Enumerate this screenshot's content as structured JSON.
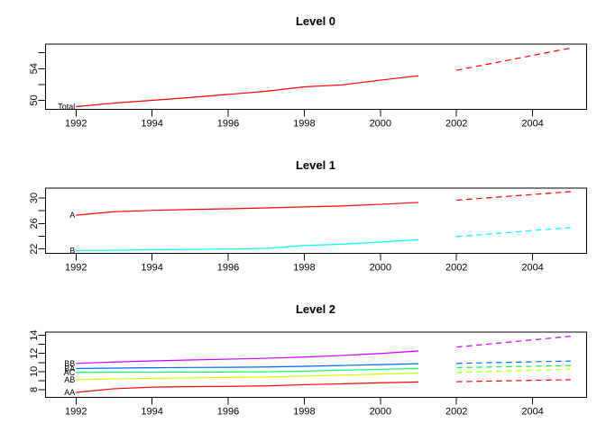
{
  "figure": {
    "background": "#ffffff",
    "axis_color": "#000000",
    "text_color": "#000000"
  },
  "chart_data": [
    {
      "type": "line",
      "title": "Level 0",
      "xlim": [
        1991.2,
        2005.42
      ],
      "ylim": [
        48.86,
        57.1
      ],
      "x_ticks": [
        1992,
        1994,
        1996,
        1998,
        2000,
        2002,
        2004
      ],
      "x_tick_labels": [
        "1992",
        "1994",
        "1996",
        "1998",
        "2000",
        "2002",
        "2004"
      ],
      "y_ticks": [
        50,
        52,
        54,
        56
      ],
      "y_tick_labels": [
        "50",
        "",
        "54",
        ""
      ],
      "grid": false,
      "legend_position": "line-start-labels",
      "years_solid": [
        1992,
        1993,
        1994,
        1995,
        1996,
        1997,
        1998,
        1999,
        2000,
        2001
      ],
      "years_forecast": [
        2002,
        2003,
        2004,
        2005
      ],
      "series": [
        {
          "name": "Total",
          "color": "#FF0000",
          "solid": [
            49.2,
            49.65,
            50.0,
            50.35,
            50.75,
            51.15,
            51.7,
            51.95,
            52.55,
            53.1
          ],
          "forecast": [
            53.8,
            54.73,
            55.67,
            56.6
          ]
        }
      ]
    },
    {
      "type": "line",
      "title": "Level 1",
      "xlim": [
        1991.2,
        2005.42
      ],
      "ylim": [
        21.32,
        31.55
      ],
      "x_ticks": [
        1992,
        1994,
        1996,
        1998,
        2000,
        2002,
        2004
      ],
      "x_tick_labels": [
        "1992",
        "1994",
        "1996",
        "1998",
        "2000",
        "2002",
        "2004"
      ],
      "y_ticks": [
        22,
        24,
        26,
        28,
        30
      ],
      "y_tick_labels": [
        "22",
        "",
        "26",
        "",
        "30"
      ],
      "grid": false,
      "legend_position": "line-start-labels",
      "years_solid": [
        1992,
        1993,
        1994,
        1995,
        1996,
        1997,
        1998,
        1999,
        2000,
        2001
      ],
      "years_forecast": [
        2002,
        2003,
        2004,
        2005
      ],
      "series": [
        {
          "name": "B",
          "color": "#00FFFF",
          "solid": [
            21.75,
            21.8,
            21.88,
            21.93,
            22.0,
            22.1,
            22.55,
            22.75,
            23.1,
            23.45
          ],
          "forecast": [
            23.95,
            24.4,
            24.9,
            25.35
          ]
        },
        {
          "name": "A",
          "color": "#FF0000",
          "solid": [
            27.3,
            27.85,
            28.05,
            28.2,
            28.3,
            28.45,
            28.6,
            28.75,
            29.0,
            29.3
          ],
          "forecast": [
            29.65,
            30.1,
            30.55,
            31.0
          ]
        }
      ]
    },
    {
      "type": "line",
      "title": "Level 2",
      "xlim": [
        1991.2,
        2005.42
      ],
      "ylim": [
        7.15,
        14.36
      ],
      "x_ticks": [
        1992,
        1994,
        1996,
        1998,
        2000,
        2002,
        2004
      ],
      "x_tick_labels": [
        "1992",
        "1994",
        "1996",
        "1998",
        "2000",
        "2002",
        "2004"
      ],
      "y_ticks": [
        8,
        9,
        10,
        11,
        12,
        13,
        14
      ],
      "y_tick_labels": [
        "8",
        "",
        "10",
        "",
        "12",
        "",
        "14"
      ],
      "grid": false,
      "legend_position": "line-start-labels",
      "years_solid": [
        1992,
        1993,
        1994,
        1995,
        1996,
        1997,
        1998,
        1999,
        2000,
        2001
      ],
      "years_forecast": [
        2002,
        2003,
        2004,
        2005
      ],
      "series": [
        {
          "name": "AA",
          "color": "#FF0000",
          "solid": [
            7.7,
            8.1,
            8.28,
            8.33,
            8.36,
            8.42,
            8.55,
            8.65,
            8.75,
            8.85
          ],
          "forecast": [
            8.88,
            8.95,
            9.03,
            9.1
          ]
        },
        {
          "name": "AB",
          "color": "#CCFF00",
          "solid": [
            9.1,
            9.18,
            9.25,
            9.3,
            9.35,
            9.4,
            9.5,
            9.6,
            9.72,
            9.83
          ],
          "forecast": [
            9.9,
            10.02,
            10.14,
            10.27
          ]
        },
        {
          "name": "AC",
          "color": "#00FF66",
          "solid": [
            9.9,
            9.92,
            9.93,
            9.94,
            9.95,
            9.98,
            10.05,
            10.15,
            10.25,
            10.33
          ],
          "forecast": [
            10.43,
            10.51,
            10.59,
            10.67
          ]
        },
        {
          "name": "BA",
          "color": "#0066FF",
          "solid": [
            10.33,
            10.38,
            10.42,
            10.45,
            10.47,
            10.51,
            10.58,
            10.67,
            10.77,
            10.87
          ],
          "forecast": [
            10.9,
            10.99,
            11.08,
            11.16
          ]
        },
        {
          "name": "BB",
          "color": "#CC00FF",
          "solid": [
            10.9,
            11.05,
            11.18,
            11.28,
            11.37,
            11.47,
            11.6,
            11.78,
            12.0,
            12.27
          ],
          "forecast": [
            12.7,
            13.1,
            13.5,
            13.9
          ]
        }
      ]
    }
  ]
}
